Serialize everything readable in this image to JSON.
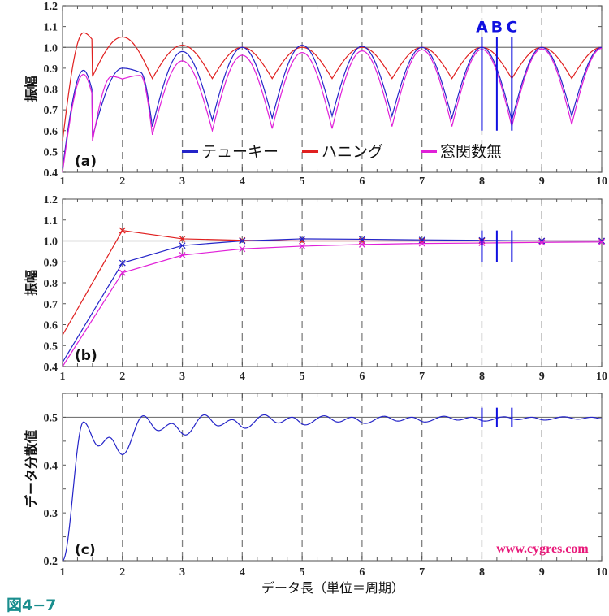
{
  "figure_label": "図4−7",
  "xlabel": "データ長（単位＝周期）",
  "watermark": "www.cygres.com",
  "colors": {
    "tukey": "#2424c8",
    "hanning": "#e02020",
    "none": "#e020d8",
    "marker": "#1010e0",
    "figure_label": "#1a8e8e",
    "watermark": "#e8197a"
  },
  "chart_data": [
    {
      "type": "line",
      "panel_label": "(a)",
      "ylabel": "振幅",
      "xlim": [
        1,
        10
      ],
      "ylim": [
        0.4,
        1.2
      ],
      "xticks": [
        "1",
        "2",
        "3",
        "4",
        "5",
        "6",
        "7",
        "8",
        "9",
        "10"
      ],
      "yticks": [
        "0.4",
        "0.5",
        "0.6",
        "0.7",
        "0.8",
        "0.9",
        "1.0",
        "1.1",
        "1.2"
      ],
      "reference_line": 1.0,
      "grid": "dashed vertical at integers",
      "legend": [
        {
          "label": "テューキー",
          "series": "tukey"
        },
        {
          "label": "ハニング",
          "series": "hanning"
        },
        {
          "label": "窓関数無",
          "series": "none"
        }
      ],
      "legend_placement": "bottom-center",
      "markers": [
        {
          "label": "A",
          "x": 8
        },
        {
          "label": "B",
          "x": 8.25
        },
        {
          "label": "C",
          "x": 8.5
        }
      ],
      "marker_range": [
        0.6,
        1.05
      ],
      "series": [
        {
          "name": "ハニング",
          "key": "hanning",
          "points": [
            [
              1,
              0.55
            ],
            [
              1.35,
              1.07
            ],
            [
              1.49,
              1.04
            ],
            [
              1.5,
              0.86
            ],
            [
              2,
              1.05
            ],
            [
              2.5,
              0.85
            ],
            [
              3,
              1.01
            ],
            [
              3.5,
              0.85
            ],
            [
              4,
              1.0
            ],
            [
              4.5,
              0.85
            ],
            [
              5,
              1.0
            ],
            [
              5.5,
              0.85
            ],
            [
              6,
              1.0
            ],
            [
              6.5,
              0.85
            ],
            [
              7,
              1.0
            ],
            [
              7.5,
              0.85
            ],
            [
              8,
              1.0
            ],
            [
              8.5,
              0.85
            ],
            [
              9,
              1.0
            ],
            [
              9.5,
              0.85
            ],
            [
              10,
              1.0
            ]
          ]
        },
        {
          "name": "テューキー",
          "key": "tukey",
          "points": [
            [
              1,
              0.42
            ],
            [
              1.35,
              0.89
            ],
            [
              1.49,
              0.8
            ],
            [
              1.5,
              0.57
            ],
            [
              2,
              0.9
            ],
            [
              2.3,
              0.88
            ],
            [
              2.5,
              0.62
            ],
            [
              3,
              0.98
            ],
            [
              3.5,
              0.65
            ],
            [
              4,
              1.0
            ],
            [
              4.5,
              0.66
            ],
            [
              5,
              1.01
            ],
            [
              5.5,
              0.67
            ],
            [
              6,
              1.005
            ],
            [
              6.5,
              0.67
            ],
            [
              7,
              1.0
            ],
            [
              7.5,
              0.66
            ],
            [
              8,
              1.0
            ],
            [
              8.5,
              0.65
            ],
            [
              9,
              1.0
            ],
            [
              9.5,
              0.67
            ],
            [
              10,
              1.0
            ]
          ]
        },
        {
          "name": "窓関数無",
          "key": "none",
          "points": [
            [
              1,
              0.4
            ],
            [
              1.35,
              0.87
            ],
            [
              1.49,
              0.78
            ],
            [
              1.5,
              0.55
            ],
            [
              1.82,
              0.86
            ],
            [
              2,
              0.848
            ],
            [
              2.3,
              0.865
            ],
            [
              2.5,
              0.58
            ],
            [
              3,
              0.935
            ],
            [
              3.5,
              0.6
            ],
            [
              4,
              0.962
            ],
            [
              4.5,
              0.61
            ],
            [
              5,
              0.975
            ],
            [
              5.5,
              0.61
            ],
            [
              6,
              0.983
            ],
            [
              6.5,
              0.62
            ],
            [
              7,
              0.988
            ],
            [
              7.5,
              0.62
            ],
            [
              8,
              0.99
            ],
            [
              8.5,
              0.62
            ],
            [
              9,
              0.993
            ],
            [
              9.5,
              0.63
            ],
            [
              10,
              0.995
            ]
          ]
        }
      ]
    },
    {
      "type": "line",
      "panel_label": "(b)",
      "ylabel": "振幅",
      "xlim": [
        1,
        10
      ],
      "ylim": [
        0.4,
        1.2
      ],
      "xticks": [
        "1",
        "2",
        "3",
        "4",
        "5",
        "6",
        "7",
        "8",
        "9",
        "10"
      ],
      "yticks": [
        "0.4",
        "0.5",
        "0.6",
        "0.7",
        "0.8",
        "0.9",
        "1.0",
        "1.1",
        "1.2"
      ],
      "reference_line": 1.0,
      "point_marker": "x",
      "markers": [
        {
          "label": "A",
          "x": 8
        },
        {
          "label": "B",
          "x": 8.25
        },
        {
          "label": "C",
          "x": 8.5
        }
      ],
      "marker_range": [
        0.9,
        1.05
      ],
      "series": [
        {
          "name": "ハニング",
          "key": "hanning",
          "points": [
            [
              1,
              0.55
            ],
            [
              2,
              1.05
            ],
            [
              3,
              1.01
            ],
            [
              4,
              1.003
            ],
            [
              5,
              1.0
            ],
            [
              6,
              1.0
            ],
            [
              7,
              1.0
            ],
            [
              8,
              1.0
            ],
            [
              9,
              1.0
            ],
            [
              10,
              1.0
            ]
          ]
        },
        {
          "name": "テューキー",
          "key": "tukey",
          "points": [
            [
              1,
              0.42
            ],
            [
              2,
              0.895
            ],
            [
              3,
              0.978
            ],
            [
              4,
              1.0
            ],
            [
              5,
              1.01
            ],
            [
              6,
              1.008
            ],
            [
              7,
              1.005
            ],
            [
              8,
              1.003
            ],
            [
              9,
              1.0
            ],
            [
              10,
              1.0
            ]
          ]
        },
        {
          "name": "窓関数無",
          "key": "none",
          "points": [
            [
              1,
              0.4
            ],
            [
              2,
              0.848
            ],
            [
              3,
              0.932
            ],
            [
              4,
              0.962
            ],
            [
              5,
              0.975
            ],
            [
              6,
              0.983
            ],
            [
              7,
              0.988
            ],
            [
              8,
              0.99
            ],
            [
              9,
              0.993
            ],
            [
              10,
              0.995
            ]
          ]
        }
      ]
    },
    {
      "type": "line",
      "panel_label": "(c)",
      "ylabel": "データ分散値",
      "xlim": [
        1,
        10
      ],
      "ylim": [
        0.2,
        0.55
      ],
      "xticks": [
        "1",
        "2",
        "3",
        "4",
        "5",
        "6",
        "7",
        "8",
        "9",
        "10"
      ],
      "yticks": [
        "0.2",
        "0.3",
        "0.4",
        "0.5"
      ],
      "reference_line": 0.5,
      "markers": [
        {
          "label": "A",
          "x": 8
        },
        {
          "label": "B",
          "x": 8.25
        },
        {
          "label": "C",
          "x": 8.5
        }
      ],
      "marker_range": [
        0.48,
        0.52
      ],
      "series": [
        {
          "name": "データ分散値",
          "key": "tukey",
          "points": [
            [
              1,
              0.2
            ],
            [
              1.35,
              0.49
            ],
            [
              1.6,
              0.44
            ],
            [
              1.78,
              0.458
            ],
            [
              2,
              0.422
            ],
            [
              2.35,
              0.503
            ],
            [
              2.6,
              0.472
            ],
            [
              2.82,
              0.487
            ],
            [
              3.05,
              0.463
            ],
            [
              3.37,
              0.505
            ],
            [
              3.6,
              0.482
            ],
            [
              3.83,
              0.495
            ],
            [
              4.05,
              0.477
            ],
            [
              4.37,
              0.505
            ],
            [
              4.6,
              0.488
            ],
            [
              4.83,
              0.5
            ],
            [
              5.05,
              0.484
            ],
            [
              5.37,
              0.503
            ],
            [
              5.6,
              0.49
            ],
            [
              5.83,
              0.5
            ],
            [
              6.05,
              0.487
            ],
            [
              6.37,
              0.502
            ],
            [
              6.6,
              0.492
            ],
            [
              6.83,
              0.5
            ],
            [
              7.05,
              0.49
            ],
            [
              7.37,
              0.502
            ],
            [
              7.6,
              0.494
            ],
            [
              7.83,
              0.5
            ],
            [
              8.05,
              0.492
            ],
            [
              8.37,
              0.501
            ],
            [
              8.6,
              0.495
            ],
            [
              8.83,
              0.5
            ],
            [
              9.05,
              0.494
            ],
            [
              9.37,
              0.501
            ],
            [
              9.6,
              0.496
            ],
            [
              9.83,
              0.5
            ],
            [
              10,
              0.497
            ]
          ]
        }
      ]
    }
  ]
}
